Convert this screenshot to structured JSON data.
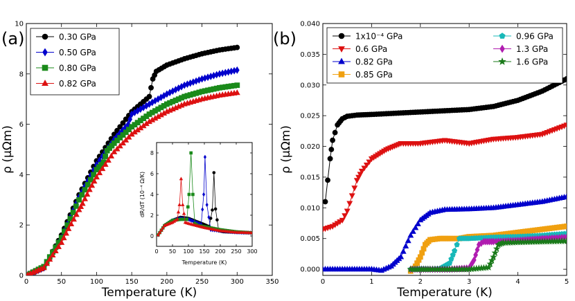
{
  "chart_data": [
    {
      "panel": "(a)",
      "type": "line",
      "xlabel": "Temperature (K)",
      "ylabel": "ρ (μΩm)",
      "xlim": [
        0,
        350
      ],
      "ylim": [
        0,
        10
      ],
      "xticks": [
        0,
        50,
        100,
        150,
        200,
        250,
        300,
        350
      ],
      "yticks": [
        0,
        2,
        4,
        6,
        8,
        10
      ],
      "legend_position": "top-left",
      "series": [
        {
          "name": "0.30 GPa",
          "color": "#000000",
          "marker": "circle",
          "x": [
            2,
            25,
            50,
            75,
            100,
            125,
            150,
            175,
            180,
            185,
            200,
            225,
            250,
            275,
            300
          ],
          "y": [
            0.02,
            0.3,
            1.6,
            3.2,
            4.55,
            5.6,
            6.5,
            7.1,
            7.8,
            8.1,
            8.35,
            8.6,
            8.8,
            8.95,
            9.05
          ]
        },
        {
          "name": "0.50 GPa",
          "color": "#0000cc",
          "marker": "diamond",
          "x": [
            2,
            25,
            50,
            75,
            100,
            125,
            145,
            150,
            175,
            200,
            225,
            250,
            275,
            300
          ],
          "y": [
            0.02,
            0.3,
            1.5,
            3.1,
            4.4,
            5.4,
            6.0,
            6.4,
            6.8,
            7.2,
            7.55,
            7.8,
            8.0,
            8.15
          ]
        },
        {
          "name": "0.80 GPa",
          "color": "#1a8a1a",
          "marker": "square",
          "x": [
            2,
            25,
            50,
            75,
            100,
            110,
            115,
            125,
            150,
            175,
            200,
            225,
            250,
            275,
            300
          ],
          "y": [
            0.02,
            0.35,
            1.5,
            3.0,
            4.2,
            4.5,
            4.95,
            5.25,
            5.9,
            6.4,
            6.8,
            7.1,
            7.3,
            7.45,
            7.55
          ]
        },
        {
          "name": "0.82 GPa",
          "color": "#dd1111",
          "marker": "triangle",
          "x": [
            2,
            25,
            50,
            60,
            75,
            80,
            90,
            100,
            125,
            150,
            175,
            200,
            225,
            250,
            275,
            300
          ],
          "y": [
            0.02,
            0.3,
            1.3,
            1.85,
            2.6,
            2.85,
            3.4,
            3.9,
            4.9,
            5.6,
            6.1,
            6.5,
            6.8,
            7.0,
            7.15,
            7.25
          ]
        }
      ],
      "inset": {
        "type": "line",
        "xlabel": "Temperature (K)",
        "ylabel": "dR/dT (10⁻⁴ Ω/K)",
        "xlim": [
          0,
          300
        ],
        "ylim": [
          -1,
          9
        ],
        "xticks": [
          0,
          50,
          100,
          150,
          200,
          250,
          300
        ],
        "yticks": [
          0,
          2,
          4,
          6,
          8
        ],
        "series": [
          {
            "name": "0.30 GPa",
            "color": "#000000",
            "marker": "circle",
            "x": [
              5,
              25,
              50,
              75,
              100,
              125,
              150,
              165,
              175,
              180,
              185,
              195,
              210,
              250,
              300
            ],
            "y": [
              0.1,
              1.0,
              1.5,
              1.8,
              1.7,
              1.4,
              1.1,
              0.9,
              2.5,
              6.1,
              2.6,
              0.5,
              0.4,
              0.35,
              0.3
            ]
          },
          {
            "name": "0.50 GPa",
            "color": "#0000cc",
            "marker": "diamond",
            "x": [
              5,
              25,
              50,
              75,
              100,
              125,
              140,
              148,
              152,
              158,
              170,
              200,
              250,
              300
            ],
            "y": [
              0.1,
              1.0,
              1.5,
              1.7,
              1.6,
              1.3,
              1.1,
              4.0,
              7.6,
              3.0,
              0.6,
              0.5,
              0.35,
              0.3
            ]
          },
          {
            "name": "0.80 GPa",
            "color": "#1a8a1a",
            "marker": "square",
            "x": [
              5,
              25,
              50,
              75,
              95,
              102,
              108,
              114,
              120,
              130,
              150,
              200,
              250,
              300
            ],
            "y": [
              0.1,
              1.0,
              1.5,
              1.6,
              1.6,
              4.0,
              8.0,
              4.0,
              1.2,
              1.0,
              0.9,
              0.6,
              0.4,
              0.3
            ]
          },
          {
            "name": "0.82 GPa",
            "color": "#dd1111",
            "marker": "triangle",
            "x": [
              5,
              25,
              50,
              65,
              72,
              77,
              82,
              90,
              100,
              125,
              150,
              200,
              250,
              300
            ],
            "y": [
              0.1,
              1.0,
              1.3,
              1.6,
              3.0,
              5.5,
              3.0,
              1.3,
              1.2,
              1.0,
              0.8,
              0.5,
              0.35,
              0.3
            ]
          }
        ]
      }
    },
    {
      "panel": "(b)",
      "type": "line",
      "xlabel": "Temperature (K)",
      "ylabel": "ρ (μΩm)",
      "xlim": [
        0,
        5
      ],
      "ylim": [
        -0.001,
        0.04
      ],
      "xticks": [
        0,
        1,
        2,
        3,
        4,
        5
      ],
      "yticks": [
        0.0,
        0.005,
        0.01,
        0.015,
        0.02,
        0.025,
        0.03,
        0.035,
        0.04
      ],
      "ytick_labels": [
        "0.000",
        "0.005",
        "0.010",
        "0.015",
        "0.020",
        "0.025",
        "0.030",
        "0.035",
        "0.040"
      ],
      "legend_position": "top",
      "series": [
        {
          "name": "1x10⁻⁴ GPa",
          "color": "#000000",
          "marker": "circle",
          "x": [
            0.05,
            0.1,
            0.15,
            0.2,
            0.3,
            0.4,
            0.5,
            0.7,
            1.0,
            1.5,
            2.0,
            2.5,
            3.0,
            3.5,
            4.0,
            4.5,
            5.0
          ],
          "y": [
            0.011,
            0.0145,
            0.018,
            0.021,
            0.0235,
            0.0245,
            0.0249,
            0.0251,
            0.0252,
            0.0254,
            0.0256,
            0.0258,
            0.026,
            0.0265,
            0.0275,
            0.029,
            0.031
          ]
        },
        {
          "name": "0.6 GPa",
          "color": "#dd1111",
          "marker": "triangle-down",
          "x": [
            0.0,
            0.2,
            0.4,
            0.5,
            0.6,
            0.7,
            0.8,
            0.9,
            1.0,
            1.3,
            1.6,
            2.0,
            2.5,
            3.0,
            3.5,
            4.0,
            4.5,
            5.0
          ],
          "y": [
            0.0065,
            0.007,
            0.008,
            0.0095,
            0.012,
            0.0145,
            0.016,
            0.017,
            0.018,
            0.0195,
            0.0205,
            0.0205,
            0.021,
            0.0205,
            0.0212,
            0.0215,
            0.022,
            0.0235
          ]
        },
        {
          "name": "0.82 GPa",
          "color": "#0000cc",
          "marker": "triangle",
          "x": [
            0.0,
            0.5,
            1.0,
            1.2,
            1.4,
            1.6,
            1.8,
            2.0,
            2.2,
            2.5,
            3.0,
            3.5,
            4.0,
            4.5,
            5.0
          ],
          "y": [
            0.0,
            0.0,
            0.0,
            -0.0002,
            0.0005,
            0.002,
            0.0055,
            0.008,
            0.0092,
            0.0097,
            0.0098,
            0.01,
            0.0105,
            0.011,
            0.0118
          ]
        },
        {
          "name": "0.85 GPa",
          "color": "#f0a010",
          "marker": "square",
          "x": [
            1.8,
            1.9,
            2.0,
            2.1,
            2.2,
            2.4,
            2.6,
            2.8,
            3.0,
            3.5,
            4.0,
            4.5,
            5.0
          ],
          "y": [
            -0.0003,
            0.0005,
            0.002,
            0.004,
            0.0048,
            0.005,
            0.005,
            0.005,
            0.0053,
            0.0055,
            0.006,
            0.0065,
            0.007
          ]
        },
        {
          "name": "0.96 GPa",
          "color": "#18b8b8",
          "marker": "pentagon",
          "x": [
            1.8,
            2.0,
            2.2,
            2.4,
            2.6,
            2.7,
            2.8,
            3.0,
            3.5,
            4.0,
            4.5,
            5.0
          ],
          "y": [
            0.0,
            0.0,
            0.0,
            0.0001,
            0.001,
            0.003,
            0.005,
            0.005,
            0.0052,
            0.0053,
            0.0055,
            0.0058
          ]
        },
        {
          "name": "1.3 GPa",
          "color": "#b01cb0",
          "marker": "diamond",
          "x": [
            1.8,
            2.2,
            2.6,
            3.0,
            3.1,
            3.2,
            3.3,
            3.5,
            4.0,
            4.5,
            5.0
          ],
          "y": [
            0.0,
            0.0,
            0.0,
            0.0002,
            0.0015,
            0.004,
            0.0045,
            0.0045,
            0.0047,
            0.005,
            0.0052
          ]
        },
        {
          "name": "1.6 GPa",
          "color": "#1a7a1a",
          "marker": "star",
          "x": [
            1.8,
            2.2,
            2.6,
            3.0,
            3.4,
            3.5,
            3.6,
            3.7,
            4.0,
            4.5,
            5.0
          ],
          "y": [
            0.0,
            0.0,
            0.0,
            0.0,
            0.0003,
            0.002,
            0.004,
            0.0043,
            0.0044,
            0.0045,
            0.0046
          ]
        }
      ]
    }
  ]
}
